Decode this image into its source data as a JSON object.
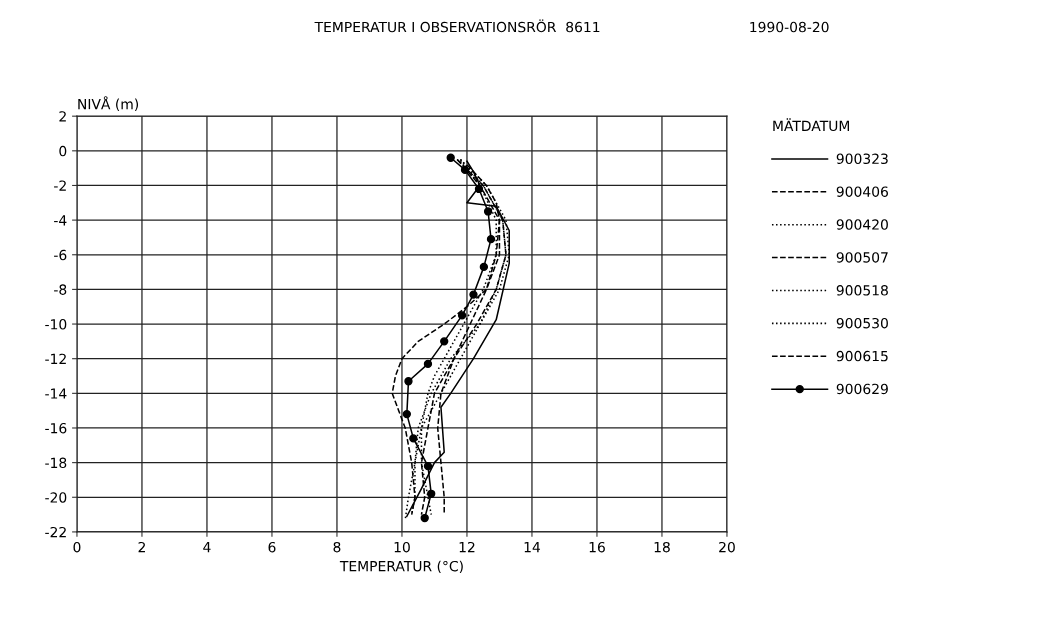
{
  "chart_data": {
    "type": "line",
    "title": "TEMPERATUR I OBSERVATIONSRÖR  8611",
    "subtitle": "1990-08-20",
    "xlabel": "TEMPERATUR (°C)",
    "ylabel": "NIVÅ (m)",
    "legend_title": "MÄTDATUM",
    "xlim": [
      0,
      20
    ],
    "xticks": [
      0,
      2,
      4,
      6,
      8,
      10,
      12,
      14,
      16,
      18,
      20
    ],
    "ylim": [
      -22,
      2
    ],
    "yticks": [
      -22,
      -20,
      -18,
      -16,
      -14,
      -12,
      -10,
      -8,
      -6,
      -4,
      -2,
      0,
      2
    ],
    "grid": true,
    "legend": "right",
    "marker": "none",
    "series": [
      {
        "name": "900323",
        "color": "#000000",
        "line_style": "solid",
        "x": [
          12.0,
          12.2,
          12.4,
          12.0,
          12.9,
          13.3,
          13.3,
          12.9,
          12.2,
          11.5,
          11.2,
          11.3,
          11.0,
          10.6,
          10.15
        ],
        "values": [
          -0.6,
          -1.2,
          -2.0,
          -3.0,
          -3.2,
          -4.6,
          -6.5,
          -9.75,
          -12.0,
          -14.0,
          -14.8,
          -17.4,
          -18.0,
          -19.5,
          -21.1
        ]
      },
      {
        "name": "900406",
        "color": "#000000",
        "line_style": "dashed",
        "x": [
          11.7,
          12.5,
          13.1,
          13.2,
          12.9,
          12.3,
          11.6,
          11.0,
          10.8,
          10.6,
          10.7,
          10.6
        ],
        "values": [
          -0.5,
          -2,
          -4,
          -6,
          -8,
          -10,
          -12,
          -14,
          -16,
          -18,
          -20,
          -21
        ]
      },
      {
        "name": "900420",
        "color": "#000000",
        "line_style": "dotted",
        "x": [
          11.8,
          12.4,
          12.9,
          12.9,
          12.5,
          11.9,
          11.3,
          11.0,
          10.8,
          10.6,
          10.6,
          10.8,
          10.9
        ],
        "values": [
          -0.6,
          -2,
          -4,
          -6,
          -8,
          -10,
          -12,
          -13,
          -14,
          -16,
          -18,
          -20,
          -21
        ]
      },
      {
        "name": "900507",
        "color": "#000000",
        "line_style": "dashed",
        "x": [
          11.7,
          12.4,
          13.0,
          13.0,
          12.6,
          12.0,
          11.3,
          10.5,
          10.0,
          9.8,
          9.7,
          9.9,
          10.1,
          10.3,
          10.4,
          10.3
        ],
        "values": [
          -0.5,
          -2,
          -4,
          -6,
          -8,
          -9,
          -10,
          -11,
          -12,
          -13,
          -14,
          -15,
          -16,
          -18,
          -20,
          -21
        ]
      },
      {
        "name": "900518",
        "color": "#000000",
        "line_style": "dotted",
        "x": [
          11.8,
          12.5,
          13.1,
          13.2,
          12.9,
          12.4,
          11.8,
          11.2,
          10.6,
          10.4,
          10.2,
          10.1
        ],
        "values": [
          -0.5,
          -2,
          -4,
          -6,
          -8,
          -10,
          -12,
          -14,
          -16,
          -18,
          -20,
          -21.3
        ]
      },
      {
        "name": "900530",
        "color": "#000000",
        "line_style": "dotted",
        "x": [
          11.8,
          12.6,
          13.2,
          13.3,
          13.0,
          12.4,
          11.5,
          10.9,
          10.5,
          10.4,
          10.4,
          10.3
        ],
        "values": [
          -0.5,
          -2,
          -4,
          -6,
          -8,
          -10,
          -12,
          -14,
          -16,
          -18,
          -20,
          -21
        ]
      },
      {
        "name": "900615",
        "color": "#000000",
        "line_style": "dashed",
        "x": [
          12.0,
          12.6,
          12.9,
          13.0,
          12.9,
          12.6,
          12.1,
          11.6,
          11.2,
          11.1,
          11.2,
          11.3,
          11.3
        ],
        "values": [
          -0.8,
          -2,
          -3,
          -4,
          -6,
          -8,
          -10,
          -12,
          -14,
          -16,
          -18,
          -20,
          -21
        ]
      },
      {
        "name": "900629",
        "color": "#000000",
        "line_style": "solid",
        "marker": "circle",
        "x": [
          11.5,
          11.94,
          12.37,
          12.65,
          12.74,
          12.52,
          12.2,
          11.85,
          11.3,
          10.8,
          10.2,
          10.15,
          10.35,
          10.8,
          10.9,
          10.7
        ],
        "values": [
          -0.4,
          -1.1,
          -2.2,
          -3.5,
          -5.1,
          -6.7,
          -8.3,
          -9.5,
          -11.0,
          -12.3,
          -13.3,
          -15.2,
          -16.6,
          -18.2,
          -19.8,
          -21.2
        ]
      }
    ]
  }
}
